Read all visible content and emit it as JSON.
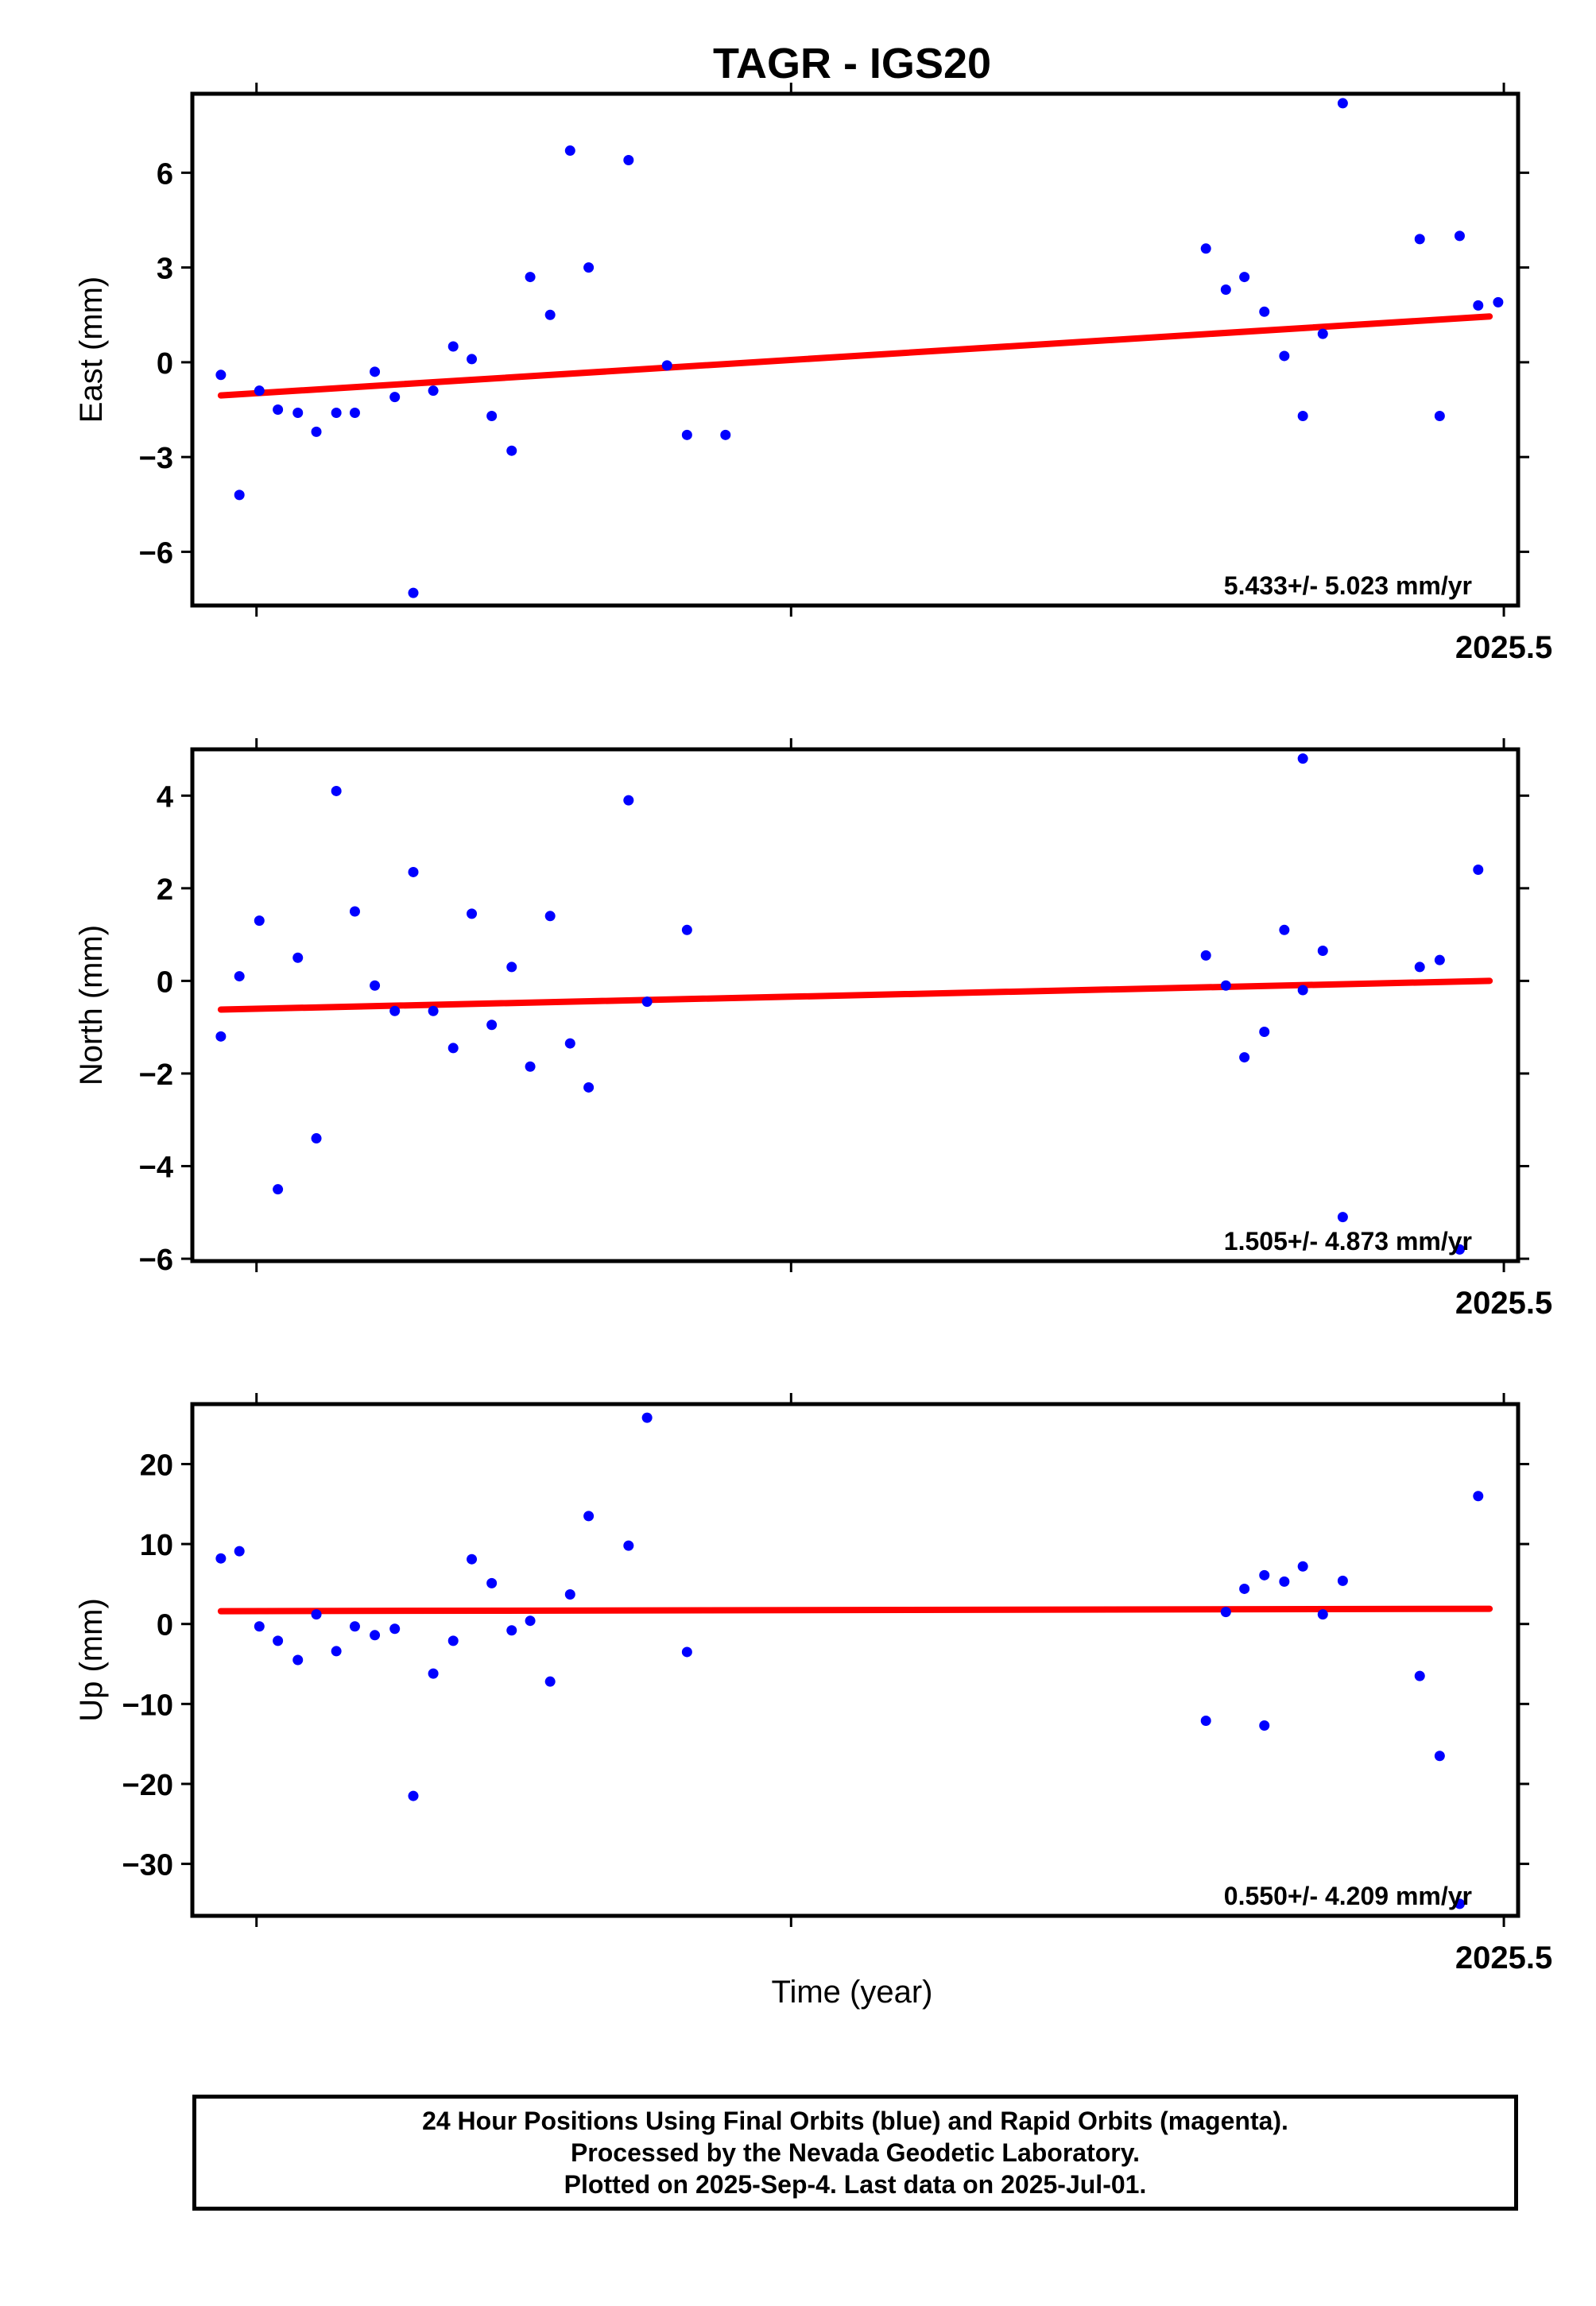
{
  "title": "TAGR - IGS20",
  "xlabel": "Time (year)",
  "colors": {
    "points": "#0000ff",
    "trend": "#ff0000",
    "frame": "#000000"
  },
  "chart_data": [
    {
      "type": "scatter",
      "component": "East",
      "ylabel": "East (mm)",
      "ylim": [
        -7.7,
        8.5
      ],
      "yticks": [
        -6,
        -3,
        0,
        3,
        6
      ],
      "ytick_labels": [
        "−6",
        "−3",
        "0",
        "3",
        "6"
      ],
      "xlim": [
        2024.58,
        2025.51
      ],
      "xticks": [
        2024.625,
        2025.0,
        2025.5
      ],
      "xtick_labels": [
        "",
        "",
        "2025.5"
      ],
      "rate_text": "5.433+/- 5.023 mm/yr",
      "trend": {
        "x": [
          2024.6,
          2025.49
        ],
        "y": [
          -1.05,
          1.45
        ]
      },
      "points": {
        "x": [
          2024.6,
          2024.613,
          2024.627,
          2024.64,
          2024.654,
          2024.667,
          2024.681,
          2024.694,
          2024.708,
          2024.722,
          2024.735,
          2024.749,
          2024.763,
          2024.776,
          2024.79,
          2024.804,
          2024.817,
          2024.831,
          2024.845,
          2024.858,
          2024.886,
          2024.913,
          2024.927,
          2024.954,
          2025.291,
          2025.305,
          2025.318,
          2025.332,
          2025.346,
          2025.359,
          2025.373,
          2025.387,
          2025.496,
          2025.441,
          2025.455,
          2025.469,
          2025.482
        ],
        "y": [
          -0.4,
          -4.2,
          -0.9,
          -1.5,
          -1.6,
          -2.2,
          -1.6,
          -1.6,
          -0.3,
          -1.1,
          -7.3,
          -0.9,
          0.5,
          0.1,
          -1.7,
          -2.8,
          2.7,
          1.5,
          6.7,
          3.0,
          6.4,
          -0.1,
          -2.3,
          -2.3,
          3.6,
          2.3,
          2.7,
          1.6,
          0.2,
          -1.7,
          0.9,
          8.2,
          1.9,
          3.9,
          -1.7,
          4.0,
          1.8
        ]
      }
    },
    {
      "type": "scatter",
      "component": "North",
      "ylabel": "North (mm)",
      "ylim": [
        -6.05,
        5.0
      ],
      "yticks": [
        -6,
        -4,
        -2,
        0,
        2,
        4
      ],
      "ytick_labels": [
        "−6",
        "−4",
        "−2",
        "0",
        "2",
        "4"
      ],
      "xlim": [
        2024.58,
        2025.51
      ],
      "xticks": [
        2024.625,
        2025.0,
        2025.5
      ],
      "xtick_labels": [
        "",
        "",
        "2025.5"
      ],
      "rate_text": "1.505+/- 4.873 mm/yr",
      "trend": {
        "x": [
          2024.6,
          2025.49
        ],
        "y": [
          -0.62,
          0.0
        ]
      },
      "points": {
        "x": [
          2024.6,
          2024.613,
          2024.627,
          2024.64,
          2024.654,
          2024.667,
          2024.681,
          2024.694,
          2024.708,
          2024.722,
          2024.735,
          2024.749,
          2024.763,
          2024.776,
          2024.79,
          2024.804,
          2024.817,
          2024.831,
          2024.845,
          2024.858,
          2024.886,
          2024.899,
          2024.927,
          2025.291,
          2025.305,
          2025.318,
          2025.332,
          2025.346,
          2025.359,
          2025.373,
          2025.387,
          2025.359,
          2025.441,
          2025.455,
          2025.469,
          2025.482
        ],
        "y": [
          -1.2,
          0.1,
          1.3,
          -4.5,
          0.5,
          -3.4,
          4.1,
          1.5,
          -0.1,
          -0.65,
          2.35,
          -0.65,
          -1.45,
          1.45,
          -0.95,
          0.3,
          -1.85,
          1.4,
          -1.35,
          -2.3,
          3.9,
          -0.45,
          1.1,
          0.55,
          -0.1,
          -1.65,
          -1.1,
          1.1,
          -0.2,
          0.65,
          -5.1,
          4.8,
          0.3,
          0.45,
          -5.8,
          2.4
        ]
      }
    },
    {
      "type": "scatter",
      "component": "Up",
      "ylabel": "Up (mm)",
      "ylim": [
        -36.5,
        27.5
      ],
      "yticks": [
        -30,
        -20,
        -10,
        0,
        10,
        20
      ],
      "ytick_labels": [
        "−30",
        "−20",
        "−10",
        "0",
        "10",
        "20"
      ],
      "xlim": [
        2024.58,
        2025.51
      ],
      "xticks": [
        2024.625,
        2025.0,
        2025.5
      ],
      "xtick_labels": [
        "",
        "",
        "2025.5"
      ],
      "rate_text": "0.550+/- 4.209 mm/yr",
      "trend": {
        "x": [
          2024.6,
          2025.49
        ],
        "y": [
          1.6,
          1.9
        ]
      },
      "points": {
        "x": [
          2024.6,
          2024.613,
          2024.627,
          2024.64,
          2024.654,
          2024.667,
          2024.681,
          2024.694,
          2024.708,
          2024.722,
          2024.735,
          2024.749,
          2024.763,
          2024.776,
          2024.79,
          2024.804,
          2024.817,
          2024.831,
          2024.845,
          2024.858,
          2024.886,
          2024.899,
          2024.927,
          2025.291,
          2025.305,
          2025.318,
          2025.332,
          2025.346,
          2025.359,
          2025.373,
          2025.387,
          2025.332,
          2025.441,
          2025.455,
          2025.469,
          2025.482
        ],
        "y": [
          8.2,
          9.1,
          -0.3,
          -2.1,
          -4.5,
          1.2,
          -3.4,
          -0.3,
          -1.4,
          -0.6,
          -21.5,
          -6.2,
          -2.1,
          8.1,
          5.1,
          -0.8,
          0.4,
          -7.2,
          3.7,
          13.5,
          9.8,
          25.8,
          -3.5,
          -12.1,
          1.5,
          4.4,
          6.1,
          5.3,
          7.2,
          1.2,
          5.4,
          -12.7,
          -6.5,
          -16.5,
          -35.0,
          16.0
        ]
      }
    }
  ],
  "footer": {
    "line1": "24 Hour Positions Using Final Orbits (blue) and Rapid Orbits (magenta).",
    "line2": "Processed by the Nevada Geodetic Laboratory.",
    "line3": "Plotted on 2025-Sep-4. Last data on 2025-Jul-01."
  }
}
